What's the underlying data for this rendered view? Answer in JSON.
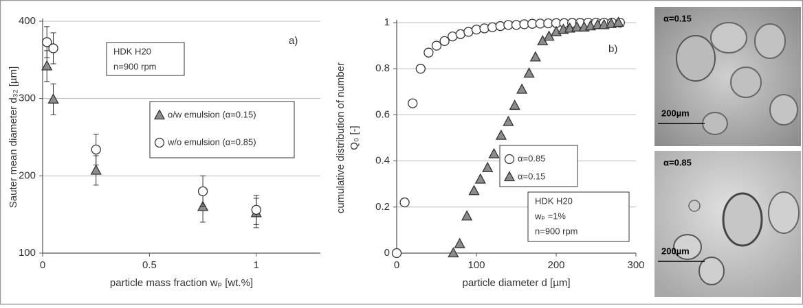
{
  "chart_data": [
    {
      "type": "scatter",
      "x_label": "particle mass fraction wₚ [wt.%]",
      "y_label": [
        "Sauter mean diameter d₃₂ [µm]"
      ],
      "annotation": [
        "HDK H20",
        "n=900 rpm"
      ],
      "panel_label": "a)",
      "xlim": [
        0,
        1.3
      ],
      "xticks": [
        0,
        0.5,
        1
      ],
      "ylim": [
        100,
        400
      ],
      "yticks": [
        100,
        200,
        300,
        400
      ],
      "grid": true,
      "series": [
        {
          "name": "o/w emulsion (α=0.15)",
          "marker": "triangle",
          "color": "#8c8c8c",
          "x": [
            0.02,
            0.05,
            0.25,
            0.75,
            1.0
          ],
          "values": [
            342,
            299,
            207,
            160,
            152
          ],
          "errors": [
            20,
            20,
            19,
            20,
            19
          ]
        },
        {
          "name": "w/o emulsion (α=0.85)",
          "marker": "circle",
          "color": "#ffffff",
          "x": [
            0.02,
            0.05,
            0.25,
            0.75,
            1.0
          ],
          "values": [
            373,
            365,
            234,
            180,
            156
          ],
          "errors": [
            20,
            20,
            20,
            20,
            19
          ]
        }
      ]
    },
    {
      "type": "scatter",
      "x_label": "particle diameter d [µm]",
      "y_label": [
        "cumulative distribution of number",
        "Q₀ [-]"
      ],
      "annotation": [
        "HDK H20",
        "wₚ =1%",
        "n=900 rpm"
      ],
      "panel_label": "b)",
      "xlim": [
        0,
        300
      ],
      "xticks": [
        0,
        100,
        200,
        300
      ],
      "ylim": [
        0,
        1
      ],
      "yticks": [
        0,
        0.2,
        0.4,
        0.6,
        0.8,
        1
      ],
      "grid": true,
      "series": [
        {
          "name": "α=0.85",
          "marker": "circle",
          "color": "#ffffff",
          "x": [
            0,
            10,
            20,
            30,
            40,
            50,
            60,
            70,
            80,
            90,
            100,
            110,
            120,
            130,
            140,
            150,
            160,
            170,
            180,
            190,
            200,
            210,
            220,
            230,
            240,
            250,
            260,
            270,
            280
          ],
          "values": [
            0,
            0.22,
            0.65,
            0.8,
            0.87,
            0.9,
            0.92,
            0.94,
            0.95,
            0.96,
            0.97,
            0.975,
            0.98,
            0.985,
            0.99,
            0.99,
            0.993,
            0.995,
            0.996,
            0.997,
            0.998,
            0.998,
            0.999,
            0.999,
            1,
            1,
            1,
            1,
            1
          ]
        },
        {
          "name": "α=0.15",
          "marker": "triangle",
          "color": "#8c8c8c",
          "x": [
            71,
            79,
            88,
            97,
            105,
            114,
            122,
            131,
            140,
            148,
            157,
            166,
            174,
            183,
            191,
            200,
            209,
            217,
            226,
            235,
            243,
            252,
            260,
            269,
            278
          ],
          "values": [
            0,
            0.04,
            0.16,
            0.27,
            0.32,
            0.37,
            0.43,
            0.51,
            0.57,
            0.64,
            0.71,
            0.78,
            0.85,
            0.92,
            0.94,
            0.96,
            0.97,
            0.975,
            0.98,
            0.98,
            0.985,
            0.99,
            0.99,
            0.995,
            1
          ]
        }
      ]
    }
  ],
  "images": [
    {
      "label": "α=0.15",
      "scale": "200µm"
    },
    {
      "label": "α=0.85",
      "scale": "200µm"
    }
  ]
}
